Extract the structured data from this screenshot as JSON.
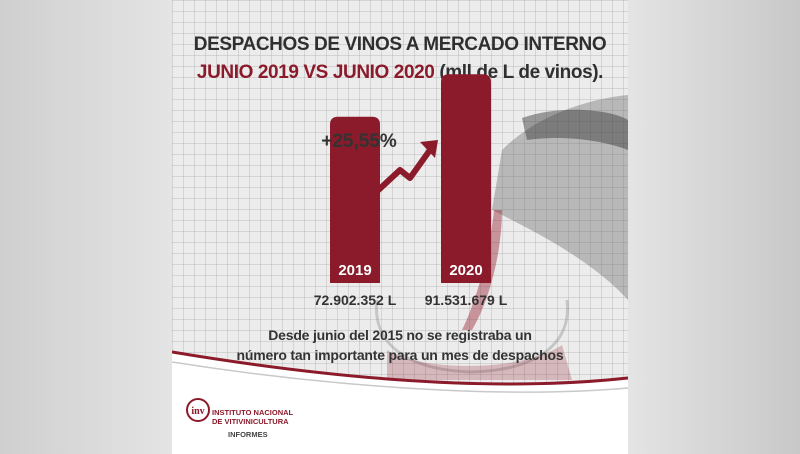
{
  "title_line1": "DESPACHOS DE VINOS  A MERCADO INTERNO",
  "title_line2_highlight": "JUNIO 2019 VS JUNIO 2020",
  "title_line2_rest": " (mll de L de vinos).",
  "chart_data": {
    "type": "bar",
    "categories": [
      "2019",
      "2020"
    ],
    "values": [
      72902352,
      91531679
    ],
    "value_labels": [
      "72.902.352 L",
      "91.531.679 L"
    ],
    "annotation": "+25,55%",
    "xlabel": "",
    "ylabel": "",
    "ylim": [
      0,
      100000000
    ],
    "grid": true,
    "bar_color": "#8b1a2b"
  },
  "note_line1": "Desde junio del 2015 no se registraba un",
  "note_line2": "número tan importante para un mes de despachos",
  "logo": {
    "mark": "inv",
    "line1": "INSTITUTO NACIONAL",
    "line2": "DE VITIVINICULTURA",
    "subtitle": "INFORMES"
  },
  "colors": {
    "accent": "#8b1a2b",
    "text": "#2f2f2f"
  }
}
